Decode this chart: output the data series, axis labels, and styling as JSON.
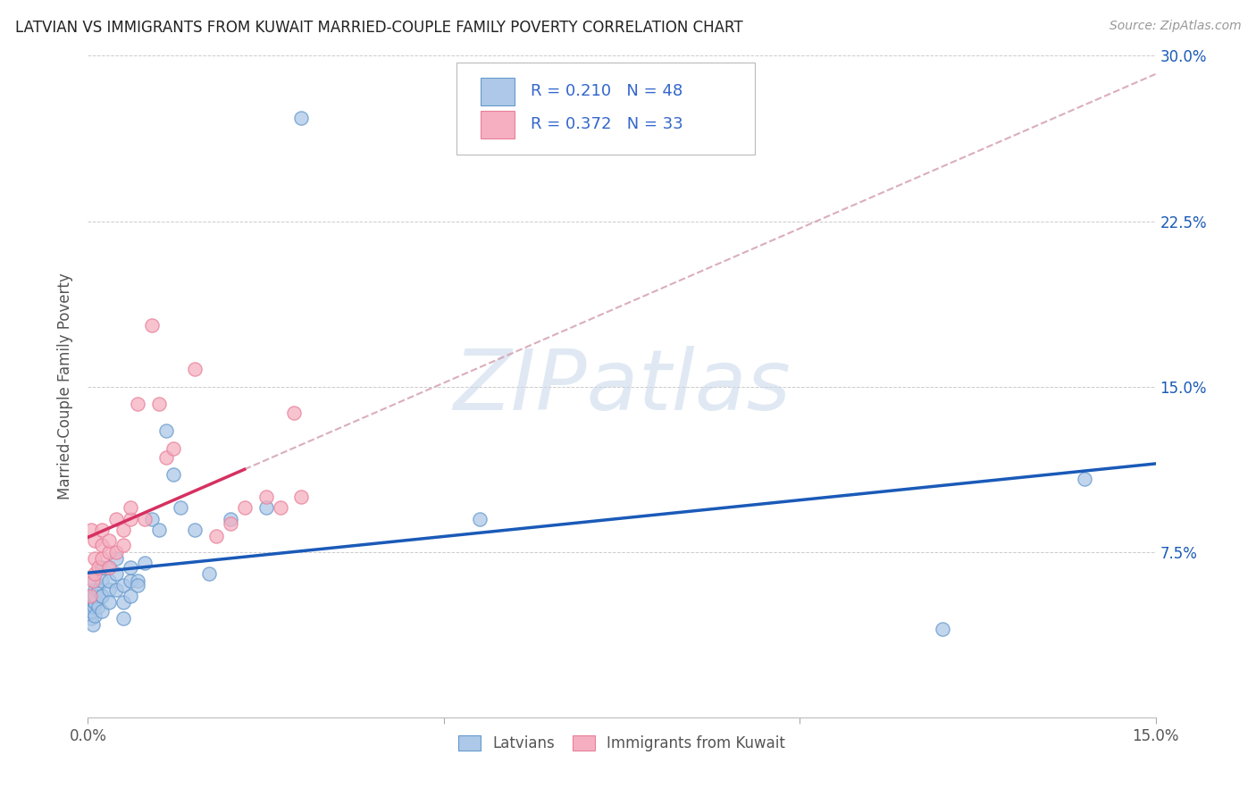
{
  "title": "LATVIAN VS IMMIGRANTS FROM KUWAIT MARRIED-COUPLE FAMILY POVERTY CORRELATION CHART",
  "source": "Source: ZipAtlas.com",
  "ylabel": "Married-Couple Family Poverty",
  "x_min": 0.0,
  "x_max": 0.15,
  "y_min": 0.0,
  "y_max": 0.3,
  "y_ticks": [
    0.0,
    0.075,
    0.15,
    0.225,
    0.3
  ],
  "y_tick_labels": [
    "",
    "7.5%",
    "15.0%",
    "22.5%",
    "30.0%"
  ],
  "x_ticks": [
    0.0,
    0.05,
    0.1,
    0.15
  ],
  "x_tick_labels": [
    "0.0%",
    "",
    "",
    "15.0%"
  ],
  "latvian_R": 0.21,
  "latvian_N": 48,
  "kuwait_R": 0.372,
  "kuwait_N": 33,
  "latvian_fill": "#adc8e8",
  "kuwait_fill": "#f5afc0",
  "latvian_edge": "#6699cc",
  "kuwait_edge": "#e8809a",
  "latvian_line_color": "#1a5ab8",
  "kuwait_line_color": "#d63060",
  "dashed_color": "#d4a0b0",
  "watermark_color": "#c8d8ea",
  "legend_latvians": "Latvians",
  "legend_kuwait": "Immigrants from Kuwait",
  "legend_text_color": "#3366cc",
  "latvian_x": [
    0.0003,
    0.0004,
    0.0005,
    0.0006,
    0.0007,
    0.0008,
    0.0009,
    0.001,
    0.001,
    0.001,
    0.001,
    0.001,
    0.0015,
    0.0015,
    0.002,
    0.002,
    0.002,
    0.002,
    0.002,
    0.003,
    0.003,
    0.003,
    0.003,
    0.004,
    0.004,
    0.004,
    0.005,
    0.005,
    0.005,
    0.006,
    0.006,
    0.006,
    0.007,
    0.007,
    0.008,
    0.009,
    0.01,
    0.011,
    0.012,
    0.013,
    0.015,
    0.017,
    0.02,
    0.025,
    0.03,
    0.055,
    0.12,
    0.14
  ],
  "latvian_y": [
    0.05,
    0.045,
    0.048,
    0.055,
    0.042,
    0.05,
    0.052,
    0.046,
    0.052,
    0.058,
    0.062,
    0.055,
    0.05,
    0.058,
    0.048,
    0.055,
    0.062,
    0.068,
    0.055,
    0.058,
    0.052,
    0.062,
    0.068,
    0.058,
    0.065,
    0.072,
    0.052,
    0.06,
    0.045,
    0.062,
    0.068,
    0.055,
    0.062,
    0.06,
    0.07,
    0.09,
    0.085,
    0.13,
    0.11,
    0.095,
    0.085,
    0.065,
    0.09,
    0.095,
    0.272,
    0.09,
    0.04,
    0.108
  ],
  "kuwait_x": [
    0.0003,
    0.0005,
    0.0007,
    0.001,
    0.001,
    0.001,
    0.0015,
    0.002,
    0.002,
    0.002,
    0.003,
    0.003,
    0.003,
    0.004,
    0.004,
    0.005,
    0.005,
    0.006,
    0.006,
    0.007,
    0.008,
    0.009,
    0.01,
    0.011,
    0.012,
    0.015,
    0.018,
    0.02,
    0.022,
    0.025,
    0.027,
    0.029,
    0.03
  ],
  "kuwait_y": [
    0.055,
    0.085,
    0.062,
    0.065,
    0.072,
    0.08,
    0.068,
    0.072,
    0.078,
    0.085,
    0.068,
    0.075,
    0.08,
    0.075,
    0.09,
    0.078,
    0.085,
    0.09,
    0.095,
    0.142,
    0.09,
    0.178,
    0.142,
    0.118,
    0.122,
    0.158,
    0.082,
    0.088,
    0.095,
    0.1,
    0.095,
    0.138,
    0.1
  ]
}
